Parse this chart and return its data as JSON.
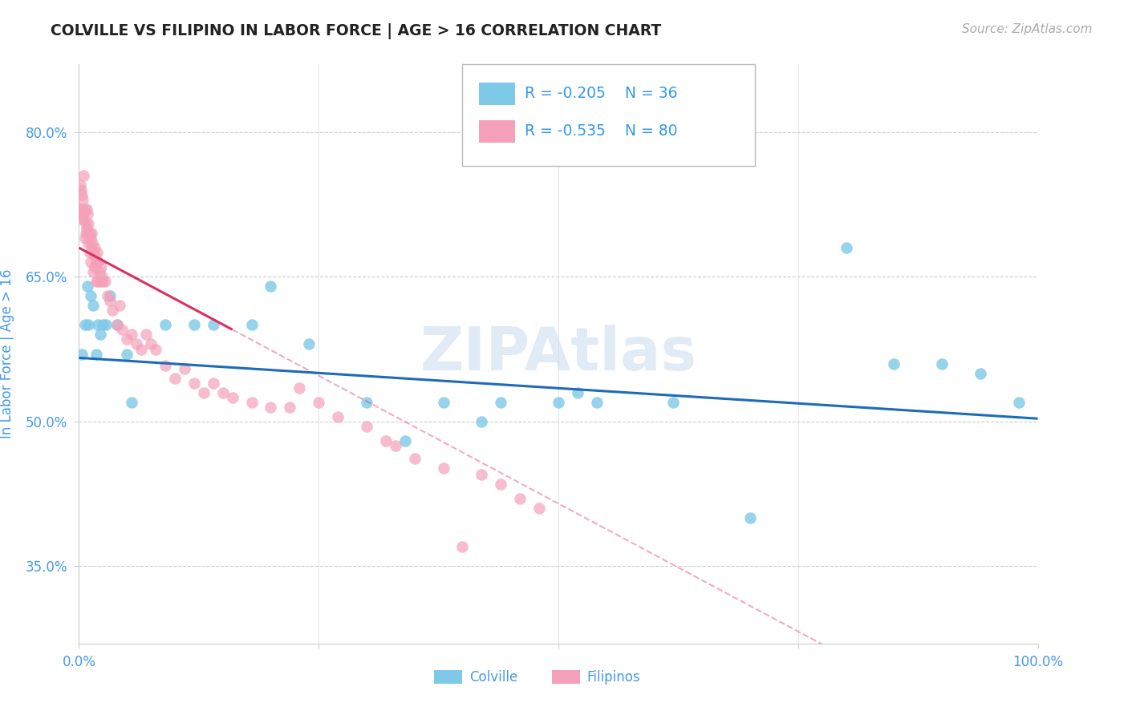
{
  "title": "COLVILLE VS FILIPINO IN LABOR FORCE | AGE > 16 CORRELATION CHART",
  "source_text": "Source: ZipAtlas.com",
  "ylabel": "In Labor Force | Age > 16",
  "xlim": [
    0.0,
    1.0
  ],
  "ylim": [
    0.27,
    0.87
  ],
  "ytick_vals": [
    0.35,
    0.5,
    0.65,
    0.8
  ],
  "ytick_labels": [
    "35.0%",
    "50.0%",
    "65.0%",
    "80.0%"
  ],
  "xtick_vals": [
    0.0,
    0.25,
    0.5,
    0.75,
    1.0
  ],
  "xtick_labels": [
    "0.0%",
    "",
    "",
    "",
    "100.0%"
  ],
  "colville_color": "#7EC8E8",
  "filipino_color": "#F4A0B8",
  "trendline_colville_color": "#1E6BB8",
  "trendline_filipino_color": "#D93060",
  "colville_x": [
    0.003,
    0.006,
    0.009,
    0.01,
    0.012,
    0.015,
    0.018,
    0.02,
    0.022,
    0.025,
    0.028,
    0.032,
    0.04,
    0.05,
    0.055,
    0.09,
    0.12,
    0.14,
    0.18,
    0.2,
    0.24,
    0.3,
    0.34,
    0.38,
    0.42,
    0.44,
    0.5,
    0.52,
    0.54,
    0.62,
    0.7,
    0.8,
    0.85,
    0.9,
    0.94,
    0.98
  ],
  "colville_y": [
    0.57,
    0.6,
    0.64,
    0.6,
    0.63,
    0.62,
    0.57,
    0.6,
    0.59,
    0.6,
    0.6,
    0.63,
    0.6,
    0.57,
    0.52,
    0.6,
    0.6,
    0.6,
    0.6,
    0.64,
    0.58,
    0.52,
    0.48,
    0.52,
    0.5,
    0.52,
    0.52,
    0.53,
    0.52,
    0.52,
    0.4,
    0.68,
    0.56,
    0.56,
    0.55,
    0.52
  ],
  "filipino_x": [
    0.0,
    0.001,
    0.002,
    0.002,
    0.003,
    0.003,
    0.004,
    0.004,
    0.005,
    0.005,
    0.006,
    0.006,
    0.007,
    0.007,
    0.008,
    0.008,
    0.009,
    0.009,
    0.01,
    0.01,
    0.011,
    0.011,
    0.012,
    0.012,
    0.013,
    0.013,
    0.014,
    0.015,
    0.015,
    0.016,
    0.016,
    0.017,
    0.018,
    0.018,
    0.019,
    0.02,
    0.02,
    0.021,
    0.022,
    0.023,
    0.024,
    0.025,
    0.027,
    0.03,
    0.032,
    0.035,
    0.04,
    0.042,
    0.045,
    0.05,
    0.055,
    0.06,
    0.065,
    0.07,
    0.075,
    0.08,
    0.09,
    0.1,
    0.11,
    0.12,
    0.13,
    0.14,
    0.15,
    0.16,
    0.18,
    0.2,
    0.22,
    0.23,
    0.25,
    0.27,
    0.3,
    0.32,
    0.33,
    0.35,
    0.38,
    0.4,
    0.42,
    0.44,
    0.46,
    0.48
  ],
  "filipino_y": [
    0.72,
    0.745,
    0.74,
    0.72,
    0.735,
    0.71,
    0.73,
    0.715,
    0.71,
    0.755,
    0.72,
    0.69,
    0.705,
    0.695,
    0.72,
    0.7,
    0.715,
    0.695,
    0.705,
    0.685,
    0.695,
    0.675,
    0.69,
    0.665,
    0.695,
    0.68,
    0.685,
    0.675,
    0.655,
    0.68,
    0.66,
    0.67,
    0.665,
    0.645,
    0.675,
    0.665,
    0.645,
    0.655,
    0.645,
    0.66,
    0.65,
    0.645,
    0.645,
    0.63,
    0.625,
    0.615,
    0.6,
    0.62,
    0.595,
    0.585,
    0.59,
    0.58,
    0.575,
    0.59,
    0.58,
    0.575,
    0.558,
    0.545,
    0.555,
    0.54,
    0.53,
    0.54,
    0.53,
    0.525,
    0.52,
    0.515,
    0.515,
    0.535,
    0.52,
    0.505,
    0.495,
    0.48,
    0.475,
    0.462,
    0.452,
    0.37,
    0.445,
    0.435,
    0.42,
    0.41
  ],
  "trendline_c_x0": 0.0,
  "trendline_c_y0": 0.566,
  "trendline_c_x1": 1.0,
  "trendline_c_y1": 0.503,
  "trendline_f_x0": 0.0,
  "trendline_f_y0": 0.68,
  "trendline_f_x1": 0.5,
  "trendline_f_y1": 0.415,
  "trendline_f_dash_x0": 0.16,
  "trendline_f_dash_start": 0.594
}
